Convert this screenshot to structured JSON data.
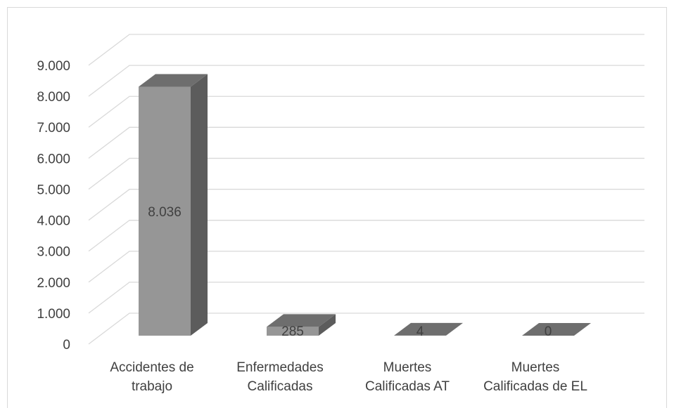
{
  "chart_data": {
    "type": "bar",
    "style": "3d-column",
    "title": "",
    "xlabel": "",
    "ylabel": "",
    "categories": [
      [
        "Accidentes de",
        "trabajo"
      ],
      [
        "Enfermedades",
        "Calificadas"
      ],
      [
        "Muertes",
        "Calificadas AT"
      ],
      [
        "Muertes",
        "Calificadas de EL"
      ]
    ],
    "values": [
      8036,
      285,
      4,
      0
    ],
    "data_labels": [
      "8.036",
      "285",
      "4",
      "0"
    ],
    "ylim": [
      0,
      9000
    ],
    "yticks": [
      0,
      1000,
      2000,
      3000,
      4000,
      5000,
      6000,
      7000,
      8000,
      9000
    ],
    "ytick_labels": [
      "0",
      "1.000",
      "2.000",
      "3.000",
      "4.000",
      "5.000",
      "6.000",
      "7.000",
      "8.000",
      "9.000"
    ],
    "grid": true,
    "legend": "none",
    "colors": {
      "front": "#969696",
      "top": "#6e6e6e",
      "side": "#5c5c5c",
      "grid": "#d9d9d9",
      "text": "#404040"
    }
  }
}
